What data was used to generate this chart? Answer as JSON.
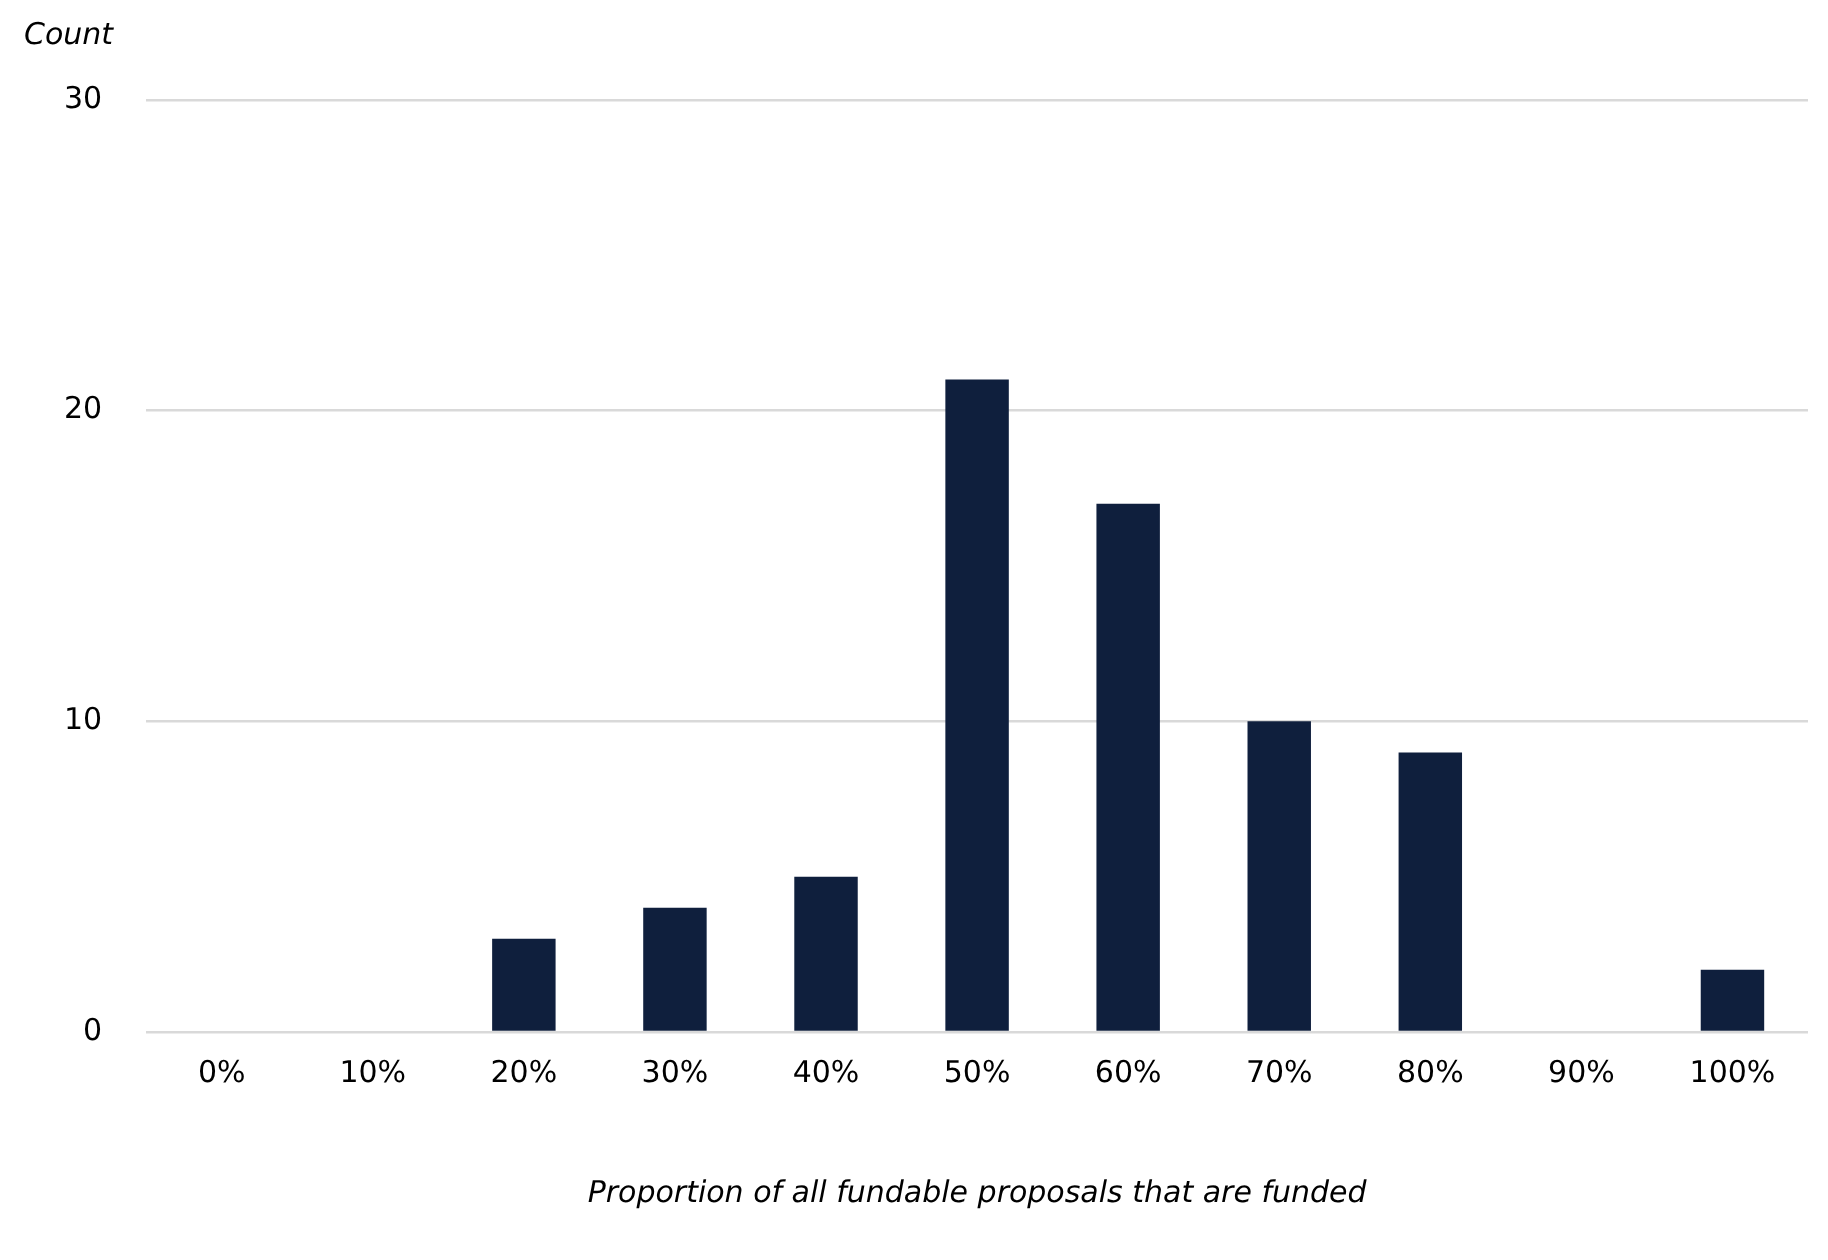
{
  "chart_data": {
    "type": "bar",
    "xlabel": "Proportion of all fundable proposals that are funded",
    "ylabel": "Count",
    "categories": [
      "0%",
      "10%",
      "20%",
      "30%",
      "40%",
      "50%",
      "60%",
      "70%",
      "80%",
      "90%",
      "100%"
    ],
    "values": [
      0,
      0,
      3,
      4,
      5,
      21,
      17,
      10,
      9,
      0,
      2
    ],
    "color": "#0f1f3d",
    "ylim": [
      0,
      30
    ],
    "yticks": [
      0,
      10,
      20,
      30
    ],
    "grid": "y",
    "legend": false
  }
}
